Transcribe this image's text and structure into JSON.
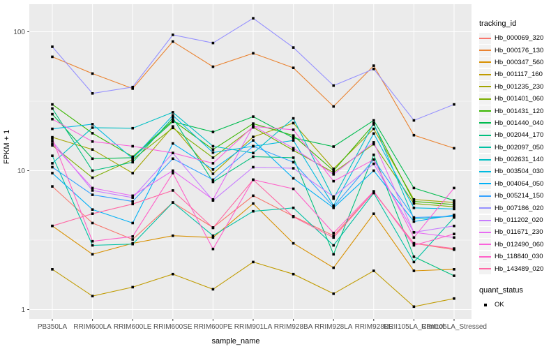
{
  "quant_status": {
    "title": "quant_status",
    "value": "OK"
  },
  "chart_data": {
    "type": "line",
    "title": "",
    "xlabel": "sample_name",
    "ylabel": "FPKM + 1",
    "legend_title": "tracking_id",
    "legend_position": "right",
    "grid": "on",
    "y_scale": "log10",
    "ylim": [
      1,
      140
    ],
    "y_ticks": [
      1,
      10,
      100
    ],
    "y_minor_ticks": [
      3.162,
      31.62
    ],
    "categories": [
      "PB350LA",
      "RRIM600LA",
      "RRIM600LE",
      "RRIM600SE",
      "RRIM600PE",
      "RRIM901LA",
      "RRIM928BA",
      "RRIM928LA",
      "RRIM928LE",
      "RRII105LA_Control",
      "RRII105LA_Stressed"
    ],
    "point_shape": "black-square",
    "panel_bg": "#EBEBEB",
    "gridline_color": "#FFFFFF",
    "series": [
      {
        "name": "Hb_000069_320",
        "color": "#F8766D",
        "values": [
          7.7,
          4.2,
          3.2,
          5.9,
          3.9,
          6.6,
          4.7,
          3.4,
          7.0,
          3.0,
          2.7
        ]
      },
      {
        "name": "Hb_000176_130",
        "color": "#EA8331",
        "values": [
          66,
          50,
          39,
          85,
          56,
          70,
          55,
          29,
          57,
          18,
          14.5
        ]
      },
      {
        "name": "Hb_000347_560",
        "color": "#D89000",
        "values": [
          4.0,
          2.5,
          3.0,
          3.4,
          3.3,
          5.8,
          3.0,
          2.0,
          4.9,
          1.9,
          1.95
        ]
      },
      {
        "name": "Hb_001117_160",
        "color": "#C09B00",
        "values": [
          1.95,
          1.25,
          1.45,
          1.8,
          1.4,
          2.2,
          1.8,
          1.3,
          1.9,
          1.05,
          1.2
        ]
      },
      {
        "name": "Hb_001235_230",
        "color": "#A3A500",
        "values": [
          17.4,
          14.2,
          9.6,
          20.8,
          9.5,
          17.5,
          22.0,
          10.3,
          20.0,
          6.2,
          5.9
        ]
      },
      {
        "name": "Hb_001401_060",
        "color": "#7CAE00",
        "values": [
          15.2,
          8.9,
          12.0,
          20.3,
          12.4,
          20.5,
          14.0,
          9.7,
          15.5,
          5.8,
          5.5
        ]
      },
      {
        "name": "Hb_001431_120",
        "color": "#39B600",
        "values": [
          30,
          18.6,
          12.6,
          23,
          14.2,
          21.8,
          17.9,
          10.0,
          21.5,
          6.0,
          5.7
        ]
      },
      {
        "name": "Hb_001440_040",
        "color": "#00BB4E",
        "values": [
          25.5,
          12.2,
          12.4,
          22.5,
          19.0,
          24.5,
          17.2,
          14.9,
          23.0,
          7.5,
          6.1
        ]
      },
      {
        "name": "Hb_002044_170",
        "color": "#00BF7D",
        "values": [
          28,
          10.0,
          11.5,
          24,
          8.3,
          12.6,
          12.4,
          2.5,
          13.0,
          2.4,
          1.75
        ]
      },
      {
        "name": "Hb_002097_050",
        "color": "#00C1A3",
        "values": [
          12.8,
          2.9,
          2.96,
          5.9,
          3.4,
          5.1,
          5.4,
          2.9,
          6.9,
          2.2,
          4.6
        ]
      },
      {
        "name": "Hb_002631_140",
        "color": "#00BFC4",
        "values": [
          11.3,
          20.4,
          20.2,
          26.3,
          15.0,
          13.4,
          23.8,
          6.3,
          22.0,
          4.5,
          4.7
        ]
      },
      {
        "name": "Hb_003504_030",
        "color": "#00BAE0",
        "values": [
          20,
          21.6,
          12.2,
          25,
          13.5,
          15.0,
          16.5,
          5.6,
          18.5,
          5.4,
          5.3
        ]
      },
      {
        "name": "Hb_004064_050",
        "color": "#00B0F6",
        "values": [
          9.6,
          5.25,
          4.2,
          15.7,
          10.2,
          16.5,
          8.8,
          5.4,
          10.0,
          4.3,
          4.8
        ]
      },
      {
        "name": "Hb_005214_150",
        "color": "#35A2FF",
        "values": [
          10.6,
          6.7,
          6.0,
          12.2,
          8.6,
          15.0,
          11.5,
          5.5,
          12.0,
          4.6,
          4.7
        ]
      },
      {
        "name": "Hb_007186_020",
        "color": "#9590FF",
        "values": [
          78,
          36,
          40,
          95,
          83,
          125,
          77,
          41,
          54,
          23,
          30
        ]
      },
      {
        "name": "Hb_011202_020",
        "color": "#C77CFF",
        "values": [
          16.3,
          7.2,
          6.4,
          13.4,
          6.1,
          10.6,
          10.4,
          6.5,
          11.2,
          3.6,
          4.0
        ]
      },
      {
        "name": "Hb_011671_230",
        "color": "#E76BF3",
        "values": [
          15.6,
          7.5,
          6.6,
          10.0,
          6.2,
          21.0,
          14.5,
          9.4,
          16.0,
          3.6,
          3.3
        ]
      },
      {
        "name": "Hb_012490_060",
        "color": "#FA62DB",
        "values": [
          23.5,
          16.2,
          15.0,
          13.4,
          11.3,
          20.8,
          19.7,
          8.4,
          12.0,
          3.3,
          7.5
        ]
      },
      {
        "name": "Hb_118840_030",
        "color": "#FF61C9",
        "values": [
          17.0,
          3.1,
          3.36,
          9.6,
          2.73,
          8.6,
          7.4,
          3.56,
          7.1,
          2.9,
          3.5
        ]
      },
      {
        "name": "Hb_143489_020",
        "color": "#FF67A4",
        "values": [
          4.0,
          4.9,
          5.75,
          7.2,
          3.87,
          8.6,
          4.65,
          3.3,
          7.0,
          3.0,
          2.75
        ]
      }
    ]
  }
}
